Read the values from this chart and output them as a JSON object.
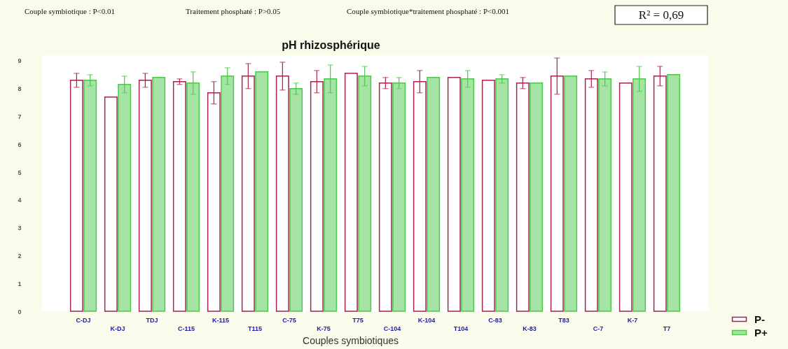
{
  "chart_data": {
    "type": "bar",
    "title": "pH rhizosphérique",
    "xlabel": "Couples symbiotiques",
    "categories": [
      "C-DJ",
      "K-DJ",
      "TDJ",
      "C-115",
      "K-115",
      "T115",
      "C-75",
      "K-75",
      "T75",
      "C-104",
      "K-104",
      "T104",
      "C-83",
      "K-83",
      "T83",
      "C-7",
      "K-7",
      "T7"
    ],
    "series": [
      {
        "name": "P-",
        "color": "#a3234f",
        "values": [
          8.3,
          7.7,
          8.3,
          8.25,
          7.85,
          8.45,
          8.45,
          8.25,
          8.55,
          8.2,
          8.25,
          8.4,
          8.3,
          8.2,
          8.45,
          8.35,
          8.2,
          8.45
        ],
        "errors": [
          0.25,
          null,
          0.25,
          0.1,
          0.4,
          0.45,
          0.5,
          0.4,
          null,
          0.2,
          0.4,
          null,
          null,
          0.2,
          0.65,
          0.3,
          null,
          0.35
        ]
      },
      {
        "name": "P+",
        "color": "#4cc94c",
        "values": [
          8.3,
          8.15,
          8.4,
          8.2,
          8.45,
          8.6,
          8.0,
          8.35,
          8.45,
          8.2,
          8.4,
          8.35,
          8.35,
          8.2,
          8.45,
          8.35,
          8.35,
          8.5
        ],
        "errors": [
          0.2,
          0.3,
          null,
          0.4,
          0.3,
          null,
          0.2,
          0.5,
          0.35,
          0.2,
          null,
          0.3,
          0.15,
          null,
          null,
          0.25,
          0.45,
          null
        ]
      }
    ],
    "ylim": [
      0,
      9.2
    ],
    "yticks": [
      0,
      1,
      2,
      3,
      4,
      5,
      6,
      7,
      8,
      9
    ],
    "legend": "bottom right",
    "annotations": [
      "Couple symbiotique : P<0.01",
      "Traitement phosphaté : P>0.05",
      "Couple symbiotique*traitement phosphaté : P<0.001",
      "R² = 0,69"
    ]
  }
}
